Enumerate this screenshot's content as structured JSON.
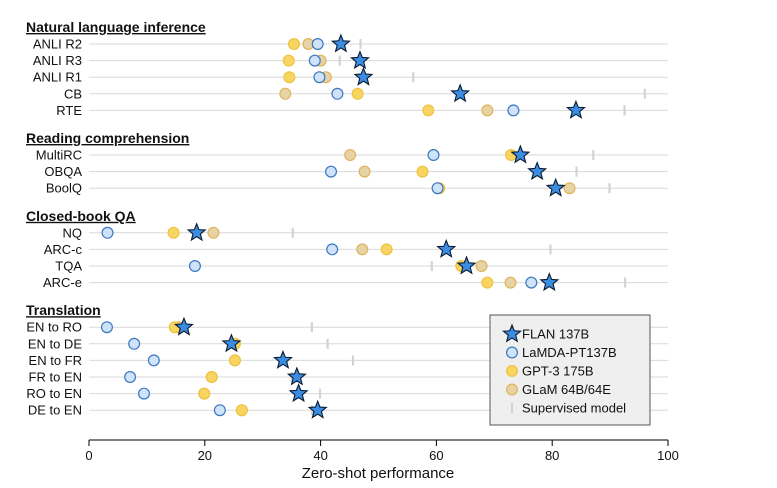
{
  "chart_data": {
    "type": "scatter",
    "xlabel": "Zero-shot performance",
    "xlim": [
      0,
      100
    ],
    "xticks": [
      0,
      20,
      40,
      60,
      80,
      100
    ],
    "grid": "horizontal lines per task",
    "legend_position": "bottom-right",
    "series": [
      {
        "key": "flan",
        "name": "FLAN 137B",
        "marker": "star",
        "color": "#3b8de3"
      },
      {
        "key": "lamda",
        "name": "LaMDA-PT137B",
        "marker": "circle",
        "color": "#cfe2f8"
      },
      {
        "key": "gpt3",
        "name": "GPT-3 175B",
        "marker": "circle",
        "color": "#f8d463"
      },
      {
        "key": "glam",
        "name": "GLaM 64B/64E",
        "marker": "circle",
        "color": "#e6d4a6"
      },
      {
        "key": "sup",
        "name": "Supervised model",
        "marker": "vline",
        "color": "#d3d3d3"
      }
    ],
    "groups": [
      {
        "title": "Natural language inference",
        "rows": [
          {
            "label": "ANLI R2",
            "flan": 43.5,
            "lamda": 39.5,
            "gpt3": 35.4,
            "glam": 37.9,
            "sup": 46.9
          },
          {
            "label": "ANLI R3",
            "flan": 46.8,
            "lamda": 39.0,
            "gpt3": 34.5,
            "glam": 40.0,
            "sup": 43.3
          },
          {
            "label": "ANLI R1",
            "flan": 47.4,
            "lamda": 39.8,
            "gpt3": 34.6,
            "glam": 40.9,
            "sup": 56.0
          },
          {
            "label": "CB",
            "flan": 64.1,
            "lamda": 42.9,
            "gpt3": 46.4,
            "glam": 33.9,
            "sup": 96.0
          },
          {
            "label": "RTE",
            "flan": 84.1,
            "lamda": 73.3,
            "gpt3": 58.6,
            "glam": 68.8,
            "sup": 92.5
          }
        ]
      },
      {
        "title": "Reading comprehension",
        "rows": [
          {
            "label": "MultiRC",
            "flan": 74.5,
            "lamda": 59.5,
            "gpt3": 72.9,
            "glam": 45.1,
            "sup": 87.1
          },
          {
            "label": "OBQA",
            "flan": 77.4,
            "lamda": 41.8,
            "gpt3": 57.6,
            "glam": 47.6,
            "sup": 84.2
          },
          {
            "label": "BoolQ",
            "flan": 80.6,
            "lamda": 60.2,
            "gpt3": 60.5,
            "glam": 83.0,
            "sup": 89.9
          }
        ]
      },
      {
        "title": "Closed-book QA",
        "rows": [
          {
            "label": "NQ",
            "flan": 18.6,
            "lamda": 3.2,
            "gpt3": 14.6,
            "glam": 21.5,
            "sup": 35.2
          },
          {
            "label": "ARC-c",
            "flan": 61.7,
            "lamda": 42.0,
            "gpt3": 51.4,
            "glam": 47.2,
            "sup": 79.7
          },
          {
            "label": "TQA",
            "flan": 65.2,
            "lamda": 18.3,
            "gpt3": 64.3,
            "glam": 67.8,
            "sup": 59.2
          },
          {
            "label": "ARC-e",
            "flan": 79.5,
            "lamda": 76.4,
            "gpt3": 68.8,
            "glam": 72.8,
            "sup": 92.6
          }
        ]
      },
      {
        "title": "Translation",
        "rows": [
          {
            "label": "EN to RO",
            "flan": 16.4,
            "lamda": 3.1,
            "gpt3": 14.8,
            "glam": 15.5,
            "sup": 38.5
          },
          {
            "label": "EN to DE",
            "flan": 24.6,
            "lamda": 7.8,
            "gpt3": 25.2,
            "glam": 25.2,
            "sup": 41.2
          },
          {
            "label": "EN to FR",
            "flan": 33.5,
            "lamda": 11.2,
            "gpt3": 25.2,
            "glam": 25.2,
            "sup": 45.6
          },
          {
            "label": "FR to EN",
            "flan": 35.9,
            "lamda": 7.1,
            "gpt3": 21.2,
            "glam": 21.2,
            "sup": 35.0
          },
          {
            "label": "RO to EN",
            "flan": 36.2,
            "lamda": 9.5,
            "gpt3": 19.9,
            "glam": 19.9,
            "sup": 39.9
          },
          {
            "label": "DE to EN",
            "flan": 39.5,
            "lamda": 22.6,
            "gpt3": 26.4,
            "glam": 26.4,
            "sup": 38.5
          }
        ]
      }
    ]
  }
}
